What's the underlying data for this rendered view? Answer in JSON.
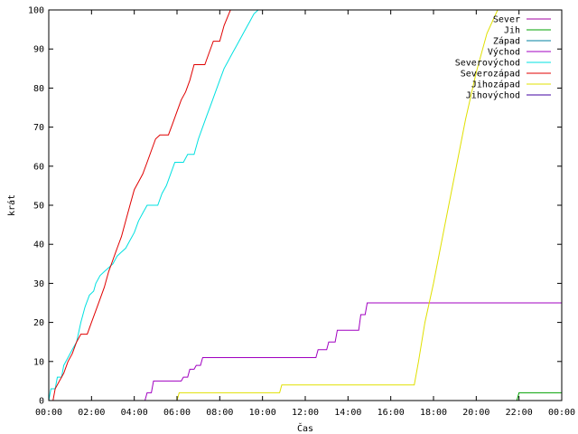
{
  "chart_data": {
    "type": "line",
    "xlabel": "Čas",
    "ylabel": "krát",
    "xlim": [
      0,
      24
    ],
    "ylim": [
      0,
      100
    ],
    "x_ticks": [
      {
        "value": 0,
        "label": "00:00"
      },
      {
        "value": 2,
        "label": "02:00"
      },
      {
        "value": 4,
        "label": "04:00"
      },
      {
        "value": 6,
        "label": "06:00"
      },
      {
        "value": 8,
        "label": "08:00"
      },
      {
        "value": 10,
        "label": "10:00"
      },
      {
        "value": 12,
        "label": "12:00"
      },
      {
        "value": 14,
        "label": "14:00"
      },
      {
        "value": 16,
        "label": "16:00"
      },
      {
        "value": 18,
        "label": "18:00"
      },
      {
        "value": 20,
        "label": "20:00"
      },
      {
        "value": 22,
        "label": "22:00"
      },
      {
        "value": 24,
        "label": "00:00"
      }
    ],
    "y_ticks": [
      {
        "value": 0,
        "label": "0"
      },
      {
        "value": 10,
        "label": "10"
      },
      {
        "value": 20,
        "label": "20"
      },
      {
        "value": 30,
        "label": "30"
      },
      {
        "value": 40,
        "label": "40"
      },
      {
        "value": 50,
        "label": "50"
      },
      {
        "value": 60,
        "label": "60"
      },
      {
        "value": 70,
        "label": "70"
      },
      {
        "value": 80,
        "label": "80"
      },
      {
        "value": 90,
        "label": "90"
      },
      {
        "value": 100,
        "label": "100"
      }
    ],
    "grid": false,
    "legend_position": "top-right",
    "series": [
      {
        "name": "Sever",
        "color": "#a000a0",
        "points": []
      },
      {
        "name": "Jih",
        "color": "#00a000",
        "points": [
          [
            21.9,
            0
          ],
          [
            22.0,
            2
          ],
          [
            24.0,
            2
          ]
        ]
      },
      {
        "name": "Západ",
        "color": "#0080a0",
        "points": []
      },
      {
        "name": "Východ",
        "color": "#a000c0",
        "points": [
          [
            4.5,
            0
          ],
          [
            4.6,
            2
          ],
          [
            4.8,
            2
          ],
          [
            4.9,
            5
          ],
          [
            6.2,
            5
          ],
          [
            6.3,
            6
          ],
          [
            6.5,
            6
          ],
          [
            6.6,
            8
          ],
          [
            6.8,
            8
          ],
          [
            6.9,
            9
          ],
          [
            7.1,
            9
          ],
          [
            7.2,
            11
          ],
          [
            12.5,
            11
          ],
          [
            12.6,
            13
          ],
          [
            13.0,
            13
          ],
          [
            13.1,
            15
          ],
          [
            13.4,
            15
          ],
          [
            13.5,
            18
          ],
          [
            14.5,
            18
          ],
          [
            14.6,
            22
          ],
          [
            14.8,
            22
          ],
          [
            14.9,
            25
          ],
          [
            24.0,
            25
          ]
        ]
      },
      {
        "name": "Severovýchod",
        "color": "#00e0e0",
        "points": [
          [
            0.0,
            0
          ],
          [
            0.1,
            3
          ],
          [
            0.3,
            3
          ],
          [
            0.4,
            6
          ],
          [
            0.6,
            6
          ],
          [
            0.7,
            9
          ],
          [
            0.9,
            11
          ],
          [
            1.1,
            13
          ],
          [
            1.3,
            15
          ],
          [
            1.5,
            20
          ],
          [
            1.7,
            24
          ],
          [
            1.9,
            27
          ],
          [
            2.1,
            28
          ],
          [
            2.2,
            30
          ],
          [
            2.4,
            32
          ],
          [
            2.6,
            33
          ],
          [
            2.8,
            34
          ],
          [
            3.0,
            35
          ],
          [
            3.2,
            37
          ],
          [
            3.4,
            38
          ],
          [
            3.6,
            39
          ],
          [
            3.8,
            41
          ],
          [
            4.0,
            43
          ],
          [
            4.2,
            46
          ],
          [
            4.4,
            48
          ],
          [
            4.6,
            50
          ],
          [
            5.1,
            50
          ],
          [
            5.3,
            53
          ],
          [
            5.5,
            55
          ],
          [
            5.7,
            58
          ],
          [
            5.9,
            61
          ],
          [
            6.3,
            61
          ],
          [
            6.5,
            63
          ],
          [
            6.8,
            63
          ],
          [
            7.0,
            67
          ],
          [
            7.2,
            70
          ],
          [
            7.4,
            73
          ],
          [
            7.6,
            76
          ],
          [
            7.8,
            79
          ],
          [
            8.0,
            82
          ],
          [
            8.2,
            85
          ],
          [
            8.4,
            87
          ],
          [
            8.6,
            89
          ],
          [
            8.8,
            91
          ],
          [
            9.0,
            93
          ],
          [
            9.2,
            95
          ],
          [
            9.4,
            97
          ],
          [
            9.6,
            99
          ],
          [
            9.8,
            100
          ],
          [
            10.1,
            100
          ]
        ]
      },
      {
        "name": "Severozápad",
        "color": "#e00000",
        "points": [
          [
            0.0,
            0
          ],
          [
            0.2,
            0
          ],
          [
            0.3,
            3
          ],
          [
            0.5,
            5
          ],
          [
            0.7,
            7
          ],
          [
            0.9,
            10
          ],
          [
            1.1,
            12
          ],
          [
            1.3,
            15
          ],
          [
            1.5,
            17
          ],
          [
            1.8,
            17
          ],
          [
            2.0,
            20
          ],
          [
            2.2,
            23
          ],
          [
            2.4,
            26
          ],
          [
            2.6,
            29
          ],
          [
            2.8,
            33
          ],
          [
            3.0,
            36
          ],
          [
            3.2,
            39
          ],
          [
            3.4,
            42
          ],
          [
            3.6,
            46
          ],
          [
            3.8,
            50
          ],
          [
            4.0,
            54
          ],
          [
            4.2,
            56
          ],
          [
            4.4,
            58
          ],
          [
            4.6,
            61
          ],
          [
            4.8,
            64
          ],
          [
            5.0,
            67
          ],
          [
            5.2,
            68
          ],
          [
            5.6,
            68
          ],
          [
            5.8,
            71
          ],
          [
            6.0,
            74
          ],
          [
            6.2,
            77
          ],
          [
            6.4,
            79
          ],
          [
            6.6,
            82
          ],
          [
            6.8,
            86
          ],
          [
            7.3,
            86
          ],
          [
            7.5,
            89
          ],
          [
            7.7,
            92
          ],
          [
            8.0,
            92
          ],
          [
            8.2,
            96
          ],
          [
            8.5,
            100
          ],
          [
            8.7,
            100
          ]
        ]
      },
      {
        "name": "Jihozápad",
        "color": "#e0e000",
        "points": [
          [
            6.0,
            0
          ],
          [
            6.1,
            2
          ],
          [
            10.8,
            2
          ],
          [
            10.9,
            4
          ],
          [
            17.1,
            4
          ],
          [
            17.3,
            10
          ],
          [
            17.6,
            20
          ],
          [
            18.0,
            30
          ],
          [
            18.5,
            44
          ],
          [
            19.0,
            58
          ],
          [
            19.5,
            72
          ],
          [
            20.0,
            84
          ],
          [
            20.5,
            94
          ],
          [
            21.0,
            100
          ],
          [
            24.0,
            100
          ]
        ]
      },
      {
        "name": "Jihovýchod",
        "color": "#4000a0",
        "points": []
      }
    ]
  }
}
